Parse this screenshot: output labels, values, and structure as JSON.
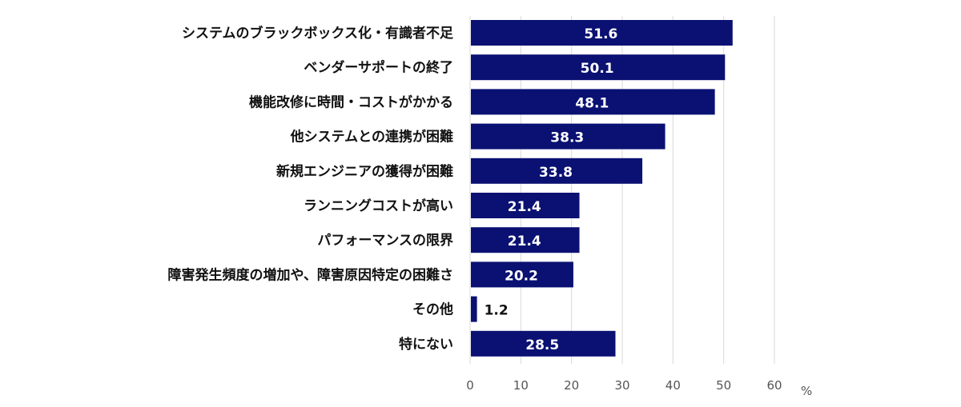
{
  "chart_data": {
    "type": "bar",
    "orientation": "horizontal",
    "categories": [
      "システムのブラックボックス化・有識者不足",
      "ベンダーサポートの終了",
      "機能改修に時間・コストがかかる",
      "他システムとの連携が困難",
      "新規エンジニアの獲得が困難",
      "ランニングコストが高い",
      "パフォーマンスの限界",
      "障害発生頻度の増加や、障害原因特定の困難さ",
      "その他",
      "特にない"
    ],
    "values": [
      51.6,
      50.1,
      48.1,
      38.3,
      33.8,
      21.4,
      21.4,
      20.2,
      1.2,
      28.5
    ],
    "xlim": [
      0,
      60
    ],
    "xticks": [
      "0",
      "10",
      "20",
      "30",
      "40",
      "50",
      "60"
    ],
    "xunit": "%",
    "grid": true,
    "bar_color": "#0a1172",
    "label_color_inside": "#ffffff",
    "label_color_outside": "#111111"
  }
}
